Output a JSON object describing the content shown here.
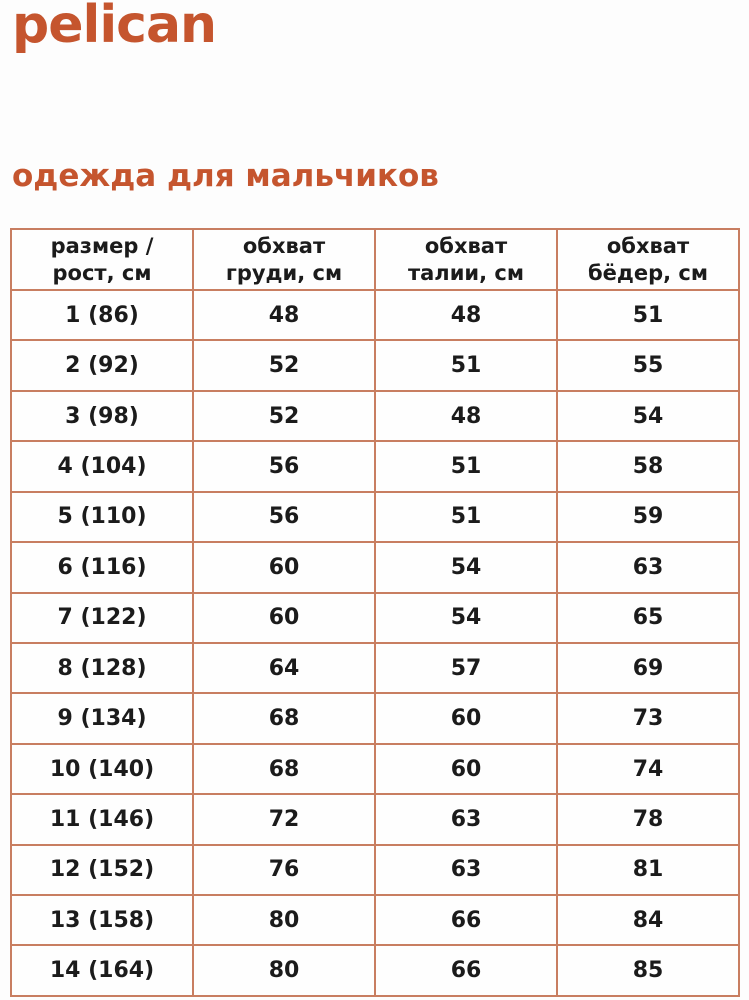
{
  "brand": {
    "logo_text": "pelican"
  },
  "colors": {
    "accent": "#C5552E",
    "table_border": "#C87E61",
    "cell_text": "#1B1B1B",
    "background": "#FDFDFD"
  },
  "chart_data": {
    "type": "table",
    "title": "одежда для мальчиков",
    "columns": [
      "размер /\nрост, см",
      "обхват\nгруди, см",
      "обхват\nталии, см",
      "обхват\nбёдер, см"
    ],
    "rows": [
      [
        "1 (86)",
        "48",
        "48",
        "51"
      ],
      [
        "2 (92)",
        "52",
        "51",
        "55"
      ],
      [
        "3 (98)",
        "52",
        "48",
        "54"
      ],
      [
        "4 (104)",
        "56",
        "51",
        "58"
      ],
      [
        "5 (110)",
        "56",
        "51",
        "59"
      ],
      [
        "6 (116)",
        "60",
        "54",
        "63"
      ],
      [
        "7 (122)",
        "60",
        "54",
        "65"
      ],
      [
        "8 (128)",
        "64",
        "57",
        "69"
      ],
      [
        "9 (134)",
        "68",
        "60",
        "73"
      ],
      [
        "10 (140)",
        "68",
        "60",
        "74"
      ],
      [
        "11 (146)",
        "72",
        "63",
        "78"
      ],
      [
        "12 (152)",
        "76",
        "63",
        "81"
      ],
      [
        "13 (158)",
        "80",
        "66",
        "84"
      ],
      [
        "14 (164)",
        "80",
        "66",
        "85"
      ]
    ]
  }
}
